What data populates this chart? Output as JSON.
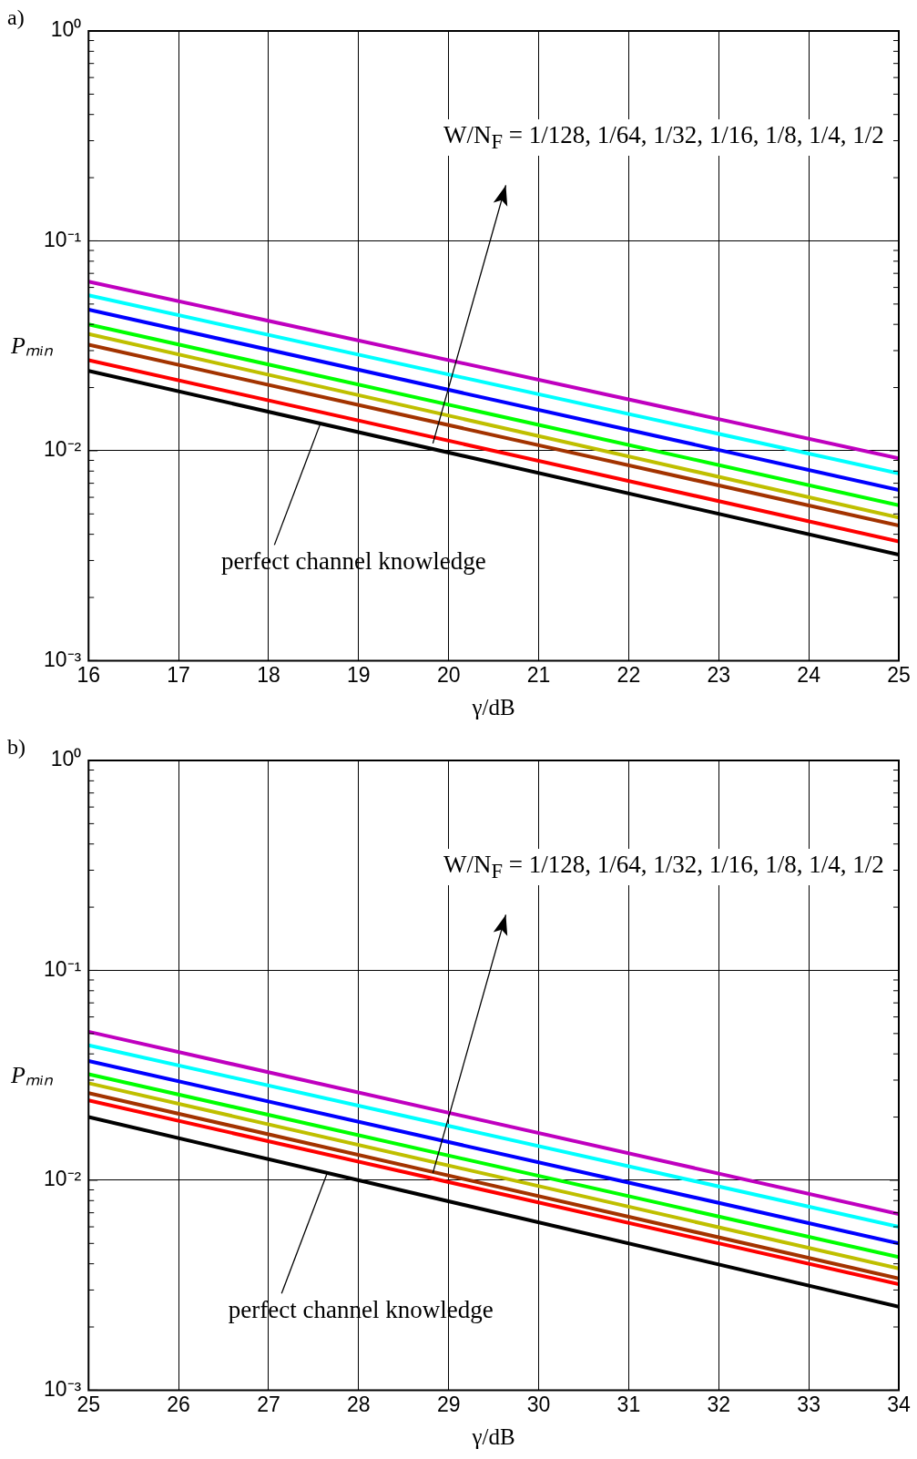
{
  "chart_data": [
    {
      "type": "line",
      "title": "a)",
      "xlabel": "γ/dB",
      "ylabel": "Pₘᵢₙ",
      "log": true,
      "grid": true,
      "legend": false,
      "marker": "none",
      "line_style": "solid",
      "x": [
        16,
        25
      ],
      "xlim": [
        16,
        25
      ],
      "xticks": [
        16,
        17,
        18,
        19,
        20,
        21,
        22,
        23,
        24,
        25
      ],
      "ylim": [
        0.001,
        1
      ],
      "yticks": [
        {
          "value": 0.001,
          "label": "10⁻³"
        },
        {
          "value": 0.002,
          "label": null
        },
        {
          "value": 0.003,
          "label": null
        },
        {
          "value": 0.004,
          "label": null
        },
        {
          "value": 0.005,
          "label": null
        },
        {
          "value": 0.006,
          "label": null
        },
        {
          "value": 0.007,
          "label": null
        },
        {
          "value": 0.008,
          "label": null
        },
        {
          "value": 0.009,
          "label": null
        },
        {
          "value": 0.01,
          "label": "10⁻²"
        },
        {
          "value": 0.02,
          "label": null
        },
        {
          "value": 0.03,
          "label": null
        },
        {
          "value": 0.04,
          "label": null
        },
        {
          "value": 0.05,
          "label": null
        },
        {
          "value": 0.06,
          "label": null
        },
        {
          "value": 0.07,
          "label": null
        },
        {
          "value": 0.08,
          "label": null
        },
        {
          "value": 0.09,
          "label": null
        },
        {
          "value": 0.1,
          "label": "10⁻¹"
        },
        {
          "value": 0.2,
          "label": null
        },
        {
          "value": 0.3,
          "label": null
        },
        {
          "value": 0.4,
          "label": null
        },
        {
          "value": 0.5,
          "label": null
        },
        {
          "value": 0.6,
          "label": null
        },
        {
          "value": 0.7,
          "label": null
        },
        {
          "value": 0.8,
          "label": null
        },
        {
          "value": 0.9,
          "label": null
        },
        {
          "value": 1,
          "label": "10⁰"
        }
      ],
      "series": [
        {
          "color": "#bf00bf",
          "values": [
            0.064,
            0.0092
          ]
        },
        {
          "color": "#00ffff",
          "values": [
            0.055,
            0.0078
          ]
        },
        {
          "color": "#0000ff",
          "values": [
            0.047,
            0.0065
          ]
        },
        {
          "color": "#00ff00",
          "values": [
            0.04,
            0.0055
          ]
        },
        {
          "color": "#bfbf00",
          "values": [
            0.036,
            0.0048
          ]
        },
        {
          "color": "#a33300",
          "values": [
            0.032,
            0.0044
          ]
        },
        {
          "color": "#ff0000",
          "values": [
            0.027,
            0.0037
          ]
        },
        {
          "color": "#000000",
          "values": [
            0.024,
            0.0032
          ]
        }
      ],
      "annotations": [
        "W/N$_{F}$ = 1/128, 1/64, 1/32, 1/16, 1/8, 1/4, 1/2",
        {
          "text": "perfect channel knowledge",
          "x": 18.57,
          "y": 0.0133
        }
      ]
    },
    {
      "type": "line",
      "title": "b)",
      "xlabel": "γ/dB",
      "ylabel": "Pₘᵢₙ",
      "log": true,
      "grid": true,
      "legend": false,
      "marker": "none",
      "line_style": "solid",
      "x": [
        25,
        34
      ],
      "xlim": [
        25,
        34
      ],
      "xticks": [
        25,
        26,
        27,
        28,
        29,
        30,
        31,
        32,
        33,
        34
      ],
      "ylim": [
        0.001,
        1
      ],
      "yticks": [
        {
          "value": 0.001,
          "label": "10⁻³"
        },
        {
          "value": 0.002,
          "label": null
        },
        {
          "value": 0.003,
          "label": null
        },
        {
          "value": 0.004,
          "label": null
        },
        {
          "value": 0.005,
          "label": null
        },
        {
          "value": 0.006,
          "label": null
        },
        {
          "value": 0.007,
          "label": null
        },
        {
          "value": 0.008,
          "label": null
        },
        {
          "value": 0.009,
          "label": null
        },
        {
          "value": 0.01,
          "label": "10⁻²"
        },
        {
          "value": 0.02,
          "label": null
        },
        {
          "value": 0.03,
          "label": null
        },
        {
          "value": 0.04,
          "label": null
        },
        {
          "value": 0.05,
          "label": null
        },
        {
          "value": 0.06,
          "label": null
        },
        {
          "value": 0.07,
          "label": null
        },
        {
          "value": 0.08,
          "label": null
        },
        {
          "value": 0.09,
          "label": null
        },
        {
          "value": 0.1,
          "label": "10⁻¹"
        },
        {
          "value": 0.2,
          "label": null
        },
        {
          "value": 0.3,
          "label": null
        },
        {
          "value": 0.4,
          "label": null
        },
        {
          "value": 0.5,
          "label": null
        },
        {
          "value": 0.6,
          "label": null
        },
        {
          "value": 0.7,
          "label": null
        },
        {
          "value": 0.8,
          "label": null
        },
        {
          "value": 0.9,
          "label": null
        },
        {
          "value": 1,
          "label": "10⁰"
        }
      ],
      "series": [
        {
          "color": "#bf00bf",
          "values": [
            0.051,
            0.0069
          ]
        },
        {
          "color": "#00ffff",
          "values": [
            0.044,
            0.006
          ]
        },
        {
          "color": "#0000ff",
          "values": [
            0.037,
            0.005
          ]
        },
        {
          "color": "#00ff00",
          "values": [
            0.032,
            0.0043
          ]
        },
        {
          "color": "#bfbf00",
          "values": [
            0.029,
            0.0038
          ]
        },
        {
          "color": "#a33300",
          "values": [
            0.026,
            0.0034
          ]
        },
        {
          "color": "#ff0000",
          "values": [
            0.024,
            0.0032
          ]
        },
        {
          "color": "#000000",
          "values": [
            0.02,
            0.0025
          ]
        }
      ],
      "annotations": [
        "W/N$_{F}$ = 1/128, 1/64, 1/32, 1/16, 1/8, 1/4, 1/2",
        {
          "text": "perfect channel knowledge",
          "x": 27.65,
          "y": 0.0108
        }
      ]
    }
  ]
}
